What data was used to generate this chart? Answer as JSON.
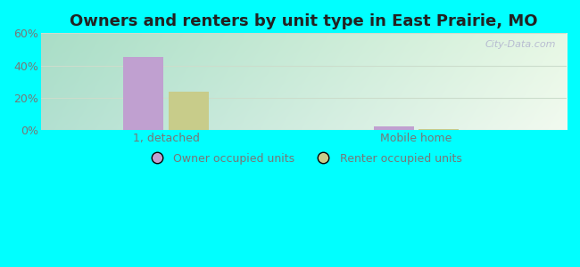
{
  "title": "Owners and renters by unit type in East Prairie, MO",
  "categories": [
    "1, detached",
    "Mobile home"
  ],
  "owner_values": [
    45.5,
    2.0
  ],
  "renter_values": [
    23.5,
    0.8
  ],
  "owner_color": "#c0a0d0",
  "renter_color": "#c8cc8a",
  "bar_width": 0.32,
  "group_positions": [
    1.0,
    3.0
  ],
  "xlim": [
    0.0,
    4.2
  ],
  "ylim": [
    0,
    60
  ],
  "yticks": [
    0,
    20,
    40,
    60
  ],
  "ytick_labels": [
    "0%",
    "20%",
    "40%",
    "60%"
  ],
  "legend_owner": "Owner occupied units",
  "legend_renter": "Renter occupied units",
  "bg_color": "#00ffff",
  "watermark": "City-Data.com",
  "title_fontsize": 13,
  "axis_label_fontsize": 9,
  "legend_fontsize": 9,
  "grid_color": "#ccddcc",
  "tick_color": "#777777"
}
